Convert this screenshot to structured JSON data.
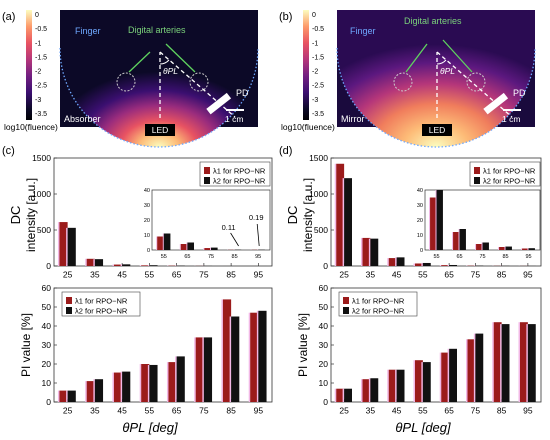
{
  "panel_labels": [
    "(a)",
    "(b)",
    "(c)",
    "(d)"
  ],
  "colorbar": {
    "ticks": [
      "0",
      "-0.5",
      "-1",
      "-1.5",
      "-2",
      "-2.5",
      "-3",
      "-3.5"
    ],
    "label": "log10(fluence)",
    "stops": [
      "#fcfdbf",
      "#fd9a6a",
      "#e85362",
      "#b5367a",
      "#721f81",
      "#3b0f70",
      "#0c0927",
      "#000004"
    ]
  },
  "sim_a": {
    "finger": "Finger",
    "arteries": "Digital arteries",
    "angle": "θPL",
    "pd": "PD",
    "scale": "1 cm",
    "led": "LED",
    "material": "Absorber"
  },
  "sim_b": {
    "finger": "Finger",
    "arteries": "Digital arteries",
    "angle": "θPL",
    "pd": "PD",
    "scale": "1 cm",
    "led": "LED",
    "material": "Mirror"
  },
  "dc_ylabel": [
    "DC",
    "intensity [a.u.]"
  ],
  "pi_ylabel": "PI value [%]",
  "xlabel": "θPL [deg]",
  "legend_c": [
    "λ1 for RPO−NR",
    "λ2 for RPO−NR"
  ],
  "legend_d": [
    "λ1 for RPO−NR",
    "λ2 for RPO−NR"
  ],
  "annot_c": [
    "0.11",
    "0.19"
  ],
  "colors": {
    "lambda1": "#9b1b1b",
    "lambda2": "#111111",
    "shadow": "#f2b8e6"
  },
  "chart_data": [
    {
      "type": "bar",
      "panel": "c",
      "ylabel": "DC intensity [a.u.]",
      "categories": [
        "25",
        "35",
        "45",
        "55",
        "65",
        "75",
        "85",
        "95"
      ],
      "ylim": [
        0,
        1500
      ],
      "yticks": [
        0,
        500,
        1000,
        1500
      ],
      "series": [
        {
          "name": "λ1 for RPO−NR",
          "values": [
            610,
            100,
            20,
            9,
            4,
            1.3,
            0.11,
            0.11
          ]
        },
        {
          "name": "λ2 for RPO−NR",
          "values": [
            530,
            95,
            23,
            11,
            5,
            1.6,
            0.19,
            0.19
          ]
        }
      ],
      "inset": {
        "categories": [
          "55",
          "65",
          "75",
          "85",
          "95"
        ],
        "ylim": [
          0,
          40
        ],
        "yticks": [
          0,
          10,
          20,
          30,
          40
        ]
      }
    },
    {
      "type": "bar",
      "panel": "c",
      "ylabel": "PI value [%]",
      "xlabel": "θPL [deg]",
      "categories": [
        "25",
        "35",
        "45",
        "55",
        "65",
        "75",
        "85",
        "95"
      ],
      "ylim": [
        0,
        60
      ],
      "yticks": [
        0,
        10,
        20,
        30,
        40,
        50,
        60
      ],
      "series": [
        {
          "name": "λ1 for RPO−NR",
          "values": [
            6,
            11,
            15.5,
            20,
            21,
            34,
            54,
            47
          ]
        },
        {
          "name": "λ2 for RPO−NR",
          "values": [
            6,
            12,
            16,
            19.5,
            24,
            34,
            45,
            48
          ]
        }
      ]
    },
    {
      "type": "bar",
      "panel": "d",
      "ylabel": "DC intensity [a.u.]",
      "categories": [
        "25",
        "35",
        "45",
        "55",
        "65",
        "75",
        "85",
        "95"
      ],
      "ylim": [
        0,
        1500
      ],
      "yticks": [
        0,
        500,
        1000,
        1500
      ],
      "series": [
        {
          "name": "λ1 for RPO−NR",
          "values": [
            1420,
            390,
            110,
            35,
            12,
            4,
            2,
            1
          ]
        },
        {
          "name": "λ2 for RPO−NR",
          "values": [
            1220,
            380,
            120,
            42,
            14,
            5,
            2.3,
            1.2
          ]
        }
      ],
      "inset": {
        "categories": [
          "55",
          "65",
          "75",
          "85",
          "95"
        ],
        "ylim": [
          0,
          40
        ],
        "yticks": [
          0,
          10,
          20,
          30,
          40
        ]
      }
    },
    {
      "type": "bar",
      "panel": "d",
      "ylabel": "PI value [%]",
      "xlabel": "θPL [deg]",
      "categories": [
        "25",
        "35",
        "45",
        "55",
        "65",
        "75",
        "85",
        "95"
      ],
      "ylim": [
        0,
        60
      ],
      "yticks": [
        0,
        10,
        20,
        30,
        40,
        50,
        60
      ],
      "series": [
        {
          "name": "λ1 for RPO−NR",
          "values": [
            7,
            12,
            17,
            22,
            26,
            33,
            42,
            42
          ]
        },
        {
          "name": "λ2 for RPO−NR",
          "values": [
            7,
            12.5,
            17,
            21,
            28,
            36,
            41,
            41
          ]
        }
      ]
    }
  ]
}
